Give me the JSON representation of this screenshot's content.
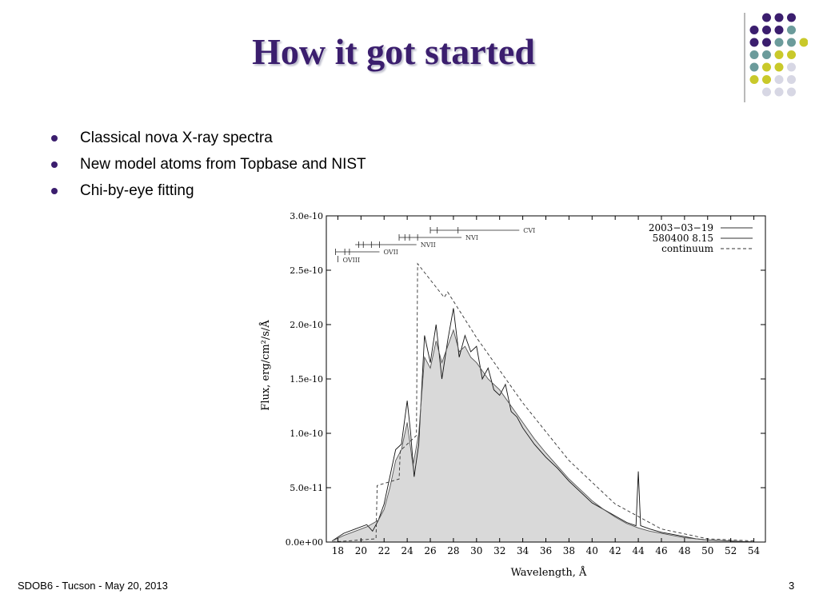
{
  "slide": {
    "title": "How it got started",
    "bullets": [
      "Classical nova X-ray spectra",
      "New model atoms from Topbase and NIST",
      "Chi-by-eye fitting"
    ],
    "footer": "SDOB6 - Tucson - May 20, 2013",
    "page_number": "3",
    "dot_colors": [
      "#3b1e6e",
      "#6b9b9b",
      "#c9c92a",
      "#d7d7e4"
    ]
  },
  "chart_data": {
    "type": "line",
    "xlabel": "Wavelength, Å",
    "ylabel": "Flux, erg/cm²/s/Å",
    "xlim": [
      17,
      55
    ],
    "ylim": [
      0,
      3e-10
    ],
    "xticks": [
      "18",
      "20",
      "22",
      "24",
      "26",
      "28",
      "30",
      "32",
      "34",
      "36",
      "38",
      "40",
      "42",
      "44",
      "46",
      "48",
      "50",
      "52",
      "54"
    ],
    "yticks": [
      "0.0e+00",
      "5.0e-11",
      "1.0e-10",
      "1.5e-10",
      "2.0e-10",
      "2.5e-10",
      "3.0e-10"
    ],
    "legend_position": "top-right",
    "series": [
      {
        "name": "2003−03−19",
        "x": [
          17.5,
          18.5,
          19.5,
          20.5,
          21.0,
          21.5,
          22.0,
          22.5,
          23.0,
          23.5,
          24.0,
          24.3,
          24.6,
          25.0,
          25.5,
          26.0,
          26.5,
          27.0,
          27.5,
          28.0,
          28.5,
          29.0,
          29.5,
          30.0,
          30.5,
          31.0,
          31.5,
          32.0,
          32.5,
          33.0,
          33.5,
          34.0,
          35.0,
          36.0,
          37.0,
          38.0,
          39.0,
          40.0,
          41.0,
          42.0,
          43.0,
          43.8,
          44.0,
          44.2,
          45.0,
          46.0,
          47.0,
          48.0,
          49.0,
          50.0,
          52.0,
          54.0
        ],
        "y": [
          1e-12,
          8e-12,
          1.2e-11,
          1.6e-11,
          1e-11,
          2e-11,
          3.5e-11,
          6e-11,
          8.5e-11,
          9e-11,
          1.3e-10,
          1e-10,
          6e-11,
          9e-11,
          1.9e-10,
          1.65e-10,
          2e-10,
          1.5e-10,
          1.85e-10,
          2.15e-10,
          1.7e-10,
          1.9e-10,
          1.75e-10,
          1.8e-10,
          1.5e-10,
          1.6e-10,
          1.4e-10,
          1.35e-10,
          1.45e-10,
          1.2e-10,
          1.15e-10,
          1.05e-10,
          9e-11,
          7.8e-11,
          6.8e-11,
          5.6e-11,
          4.6e-11,
          3.6e-11,
          3e-11,
          2.4e-11,
          1.8e-11,
          1.5e-11,
          6.5e-11,
          1.5e-11,
          1.2e-11,
          9e-12,
          7e-12,
          5e-12,
          3e-12,
          2e-12,
          1e-12,
          0
        ]
      },
      {
        "name": "580400 8.15",
        "x": [
          17.5,
          18.5,
          19.5,
          20.5,
          21.5,
          22.0,
          22.5,
          23.0,
          23.5,
          24.0,
          24.5,
          25.0,
          25.5,
          26.0,
          26.5,
          27.0,
          27.5,
          28.0,
          28.5,
          29.0,
          29.5,
          30.0,
          31.0,
          32.0,
          33.0,
          34.0,
          35.0,
          36.0,
          37.0,
          38.0,
          39.0,
          40.0,
          41.0,
          42.0,
          43.0,
          44.0,
          45.0,
          46.0,
          47.0,
          48.0,
          49.0,
          50.0,
          52.0,
          54.0
        ],
        "y": [
          1e-12,
          6e-12,
          1e-11,
          1.4e-11,
          2e-11,
          3e-11,
          5e-11,
          7.5e-11,
          8.5e-11,
          1.1e-10,
          7e-11,
          1e-10,
          1.7e-10,
          1.6e-10,
          1.85e-10,
          1.65e-10,
          1.8e-10,
          1.95e-10,
          1.75e-10,
          1.8e-10,
          1.7e-10,
          1.65e-10,
          1.5e-10,
          1.4e-10,
          1.25e-10,
          1.1e-10,
          9.5e-11,
          8.2e-11,
          7e-11,
          5.8e-11,
          4.8e-11,
          3.8e-11,
          3e-11,
          2.3e-11,
          1.7e-11,
          1.3e-11,
          1e-11,
          8e-12,
          6e-12,
          4e-12,
          3e-12,
          2e-12,
          1e-12,
          0
        ]
      },
      {
        "name": "continuum",
        "x": [
          17.5,
          21.3,
          21.4,
          23.3,
          23.4,
          24.8,
          24.9,
          27.2,
          27.5,
          30.0,
          34.0,
          38.0,
          42.0,
          46.0,
          50.0,
          54.0
        ],
        "y": [
          0,
          3e-12,
          5.2e-11,
          5.8e-11,
          8.4e-11,
          9.8e-11,
          2.56e-10,
          2.25e-10,
          2.3e-10,
          1.88e-10,
          1.28e-10,
          7.5e-11,
          3.5e-11,
          1.2e-11,
          3e-12,
          1e-12
        ]
      }
    ],
    "line_ids": [
      {
        "label": "CVI",
        "x_start": 26.0,
        "x_end": 33.7,
        "ticks": [
          26.0,
          26.6,
          28.4
        ]
      },
      {
        "label": "NVI",
        "x_start": 23.3,
        "x_end": 28.7,
        "ticks": [
          23.3,
          23.8,
          24.2,
          24.9
        ]
      },
      {
        "label": "NVII",
        "x_start": 19.5,
        "x_end": 24.8,
        "ticks": [
          19.8,
          20.2,
          20.9,
          21.6
        ]
      },
      {
        "label": "OVII",
        "x_start": 17.8,
        "x_end": 21.6,
        "ticks": [
          17.8,
          18.6,
          19.0
        ]
      },
      {
        "label": "OVIII",
        "x_start": 18.0,
        "x_end": 18.0,
        "ticks": [
          18.0
        ]
      }
    ]
  }
}
